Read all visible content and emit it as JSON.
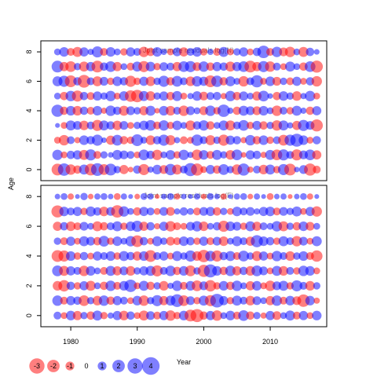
{
  "chart_data": {
    "type": "scatter",
    "kind": "bubble residual plot",
    "xlabel": "Year",
    "ylabel": "Age",
    "shared_x_ticks": [
      1980,
      1990,
      2000,
      2010
    ],
    "xlim": [
      1975.5,
      2018.5
    ],
    "colors": {
      "positive": "#0000ff",
      "negative": "#ff0000",
      "opacity": 0.5
    },
    "years": [
      1978,
      1979,
      1980,
      1981,
      1982,
      1983,
      1984,
      1985,
      1986,
      1987,
      1988,
      1989,
      1990,
      1991,
      1992,
      1993,
      1994,
      1995,
      1996,
      1997,
      1998,
      1999,
      2000,
      2001,
      2002,
      2003,
      2004,
      2005,
      2006,
      2007,
      2008,
      2009,
      2010,
      2011,
      2012,
      2013,
      2014,
      2015,
      2016,
      2017
    ],
    "ages": [
      0,
      1,
      2,
      3,
      4,
      5,
      6,
      7,
      8
    ],
    "legend": [
      {
        "label": "-3",
        "value": -3
      },
      {
        "label": "-2",
        "value": -2
      },
      {
        "label": "-1",
        "value": -1
      },
      {
        "label": "0",
        "value": 0
      },
      {
        "label": "1",
        "value": 1
      },
      {
        "label": "2",
        "value": 2
      },
      {
        "label": "3",
        "value": 3
      },
      {
        "label": "4",
        "value": 4
      }
    ],
    "panels": [
      {
        "title": "Joint sample residuals log(N)",
        "y_ticks": [
          0,
          2,
          4,
          6,
          8
        ],
        "ylim": [
          -0.75,
          8.75
        ],
        "residuals": [
          [
            -1.8,
            2.0,
            -1.4,
            -0.9,
            1.3,
            -1.8,
            2.1,
            -1.5,
            1.8,
            0.7,
            -1.1,
            -0.4,
            0.9,
            -1.6,
            0.5,
            1.2,
            -1.0,
            1.7,
            -1.3,
            0.8,
            2.2,
            -1.9,
            -0.6,
            1.1,
            -0.9,
            1.5,
            0.7,
            -1.4,
            1.9,
            -0.5,
            0.8,
            -1.2,
            1.3,
            -0.7,
            1.6,
            -1.8,
            0.4,
            1.0,
            -1.9,
            -0.8
          ],
          [
            1.4,
            -0.6,
            0.9,
            1.1,
            -1.3,
            1.6,
            -0.8,
            0.7,
            0.4,
            1.3,
            1.0,
            0.8,
            -0.6,
            1.5,
            0.9,
            -1.4,
            0.6,
            1.2,
            -0.7,
            1.4,
            0.5,
            -1.5,
            1.2,
            -0.8,
            1.3,
            0.7,
            -1.2,
            1.5,
            -0.4,
            1.1,
            0.9,
            -0.5,
            1.3,
            -1.5,
            1.6,
            0.8,
            -1.6,
            1.0,
            1.5,
            -1.1
          ],
          [
            -0.6,
            -1.4,
            0.8,
            -0.5,
            1.2,
            0.9,
            1.6,
            0.4,
            -1.1,
            1.5,
            -0.9,
            -0.7,
            1.8,
            0.6,
            -1.2,
            0.9,
            1.6,
            -1.3,
            0.5,
            -0.8,
            -0.6,
            1.7,
            0.8,
            -1.3,
            0.7,
            -1.6,
            1.1,
            0.9,
            -0.5,
            1.4,
            -0.9,
            1.2,
            -0.7,
            0.8,
            -1.5,
            1.6,
            2.2,
            1.2,
            -0.6,
            0.9
          ],
          [
            0.3,
            -0.6,
            1.3,
            1.0,
            -1.2,
            0.8,
            -1.6,
            1.3,
            0.9,
            -1.2,
            1.0,
            -0.6,
            0.7,
            1.2,
            1.5,
            -0.8,
            1.4,
            -0.7,
            1.2,
            0.6,
            -1.3,
            0.9,
            1.4,
            -0.9,
            0.6,
            1.3,
            -1.3,
            0.8,
            1.5,
            -0.7,
            1.1,
            -0.9,
            0.7,
            -1.4,
            1.3,
            0.5,
            -1.1,
            1.6,
            1.0,
            -1.9
          ],
          [
            1.9,
            -0.9,
            1.2,
            -1.2,
            0.9,
            -0.8,
            1.2,
            -0.5,
            1.4,
            0.9,
            -1.3,
            1.0,
            0.7,
            -1.1,
            1.3,
            -0.4,
            1.2,
            -1.2,
            0.8,
            -1.4,
            1.0,
            0.6,
            -1.0,
            1.4,
            -0.7,
            2.0,
            0.5,
            -0.9,
            1.3,
            1.0,
            -1.0,
            1.2,
            0.6,
            -1.4,
            0.8,
            -0.7,
            1.3,
            0.5,
            -0.9,
            1.1
          ],
          [
            0.6,
            -0.9,
            1.4,
            -1.6,
            0.9,
            -0.8,
            1.1,
            0.7,
            1.4,
            -0.6,
            1.2,
            -1.7,
            -2.0,
            1.3,
            -1.2,
            0.7,
            1.1,
            -0.9,
            1.3,
            -0.6,
            0.5,
            1.2,
            -1.0,
            0.8,
            0.9,
            -0.5,
            1.4,
            -0.9,
            1.1,
            0.6,
            -1.1,
            1.5,
            0.4,
            -0.9,
            1.2,
            0.7,
            -1.2,
            0.5,
            1.4,
            -0.6
          ],
          [
            1.3,
            1.6,
            -1.8,
            0.9,
            -2.1,
            0.8,
            -1.3,
            1.0,
            -0.7,
            1.2,
            0.9,
            -1.6,
            -0.7,
            1.1,
            -1.2,
            0.7,
            1.6,
            -0.9,
            1.5,
            0.8,
            -1.2,
            1.4,
            1.1,
            -1.8,
            1.7,
            -0.9,
            1.3,
            0.6,
            -1.4,
            0.8,
            1.9,
            -0.6,
            1.2,
            -1.0,
            0.7,
            -0.8,
            1.1,
            -0.6,
            0.9,
            -1.4
          ],
          [
            1.8,
            -1.1,
            -1.5,
            0.7,
            -1.3,
            1.1,
            -1.8,
            0.9,
            1.5,
            -1.1,
            0.6,
            -0.8,
            1.3,
            -1.6,
            1.2,
            -0.7,
            1.0,
            0.8,
            -1.1,
            1.5,
            1.6,
            -1.0,
            1.4,
            -0.9,
            1.1,
            0.9,
            -1.3,
            1.1,
            1.5,
            -1.8,
            -1.1,
            1.6,
            -1.4,
            0.8,
            -0.6,
            1.3,
            0.6,
            -0.9,
            1.5,
            -1.9
          ],
          [
            0.6,
            1.2,
            -0.8,
            -1.3,
            1.1,
            0.5,
            1.6,
            -0.8,
            1.2,
            0.6,
            -0.7,
            1.1,
            0.8,
            -1.4,
            -0.9,
            1.2,
            0.5,
            -0.6,
            1.0,
            -1.1,
            0.8,
            1.2,
            -0.7,
            0.5,
            -0.8,
            1.3,
            -0.6,
            0.7,
            1.1,
            -0.6,
            0.9,
            2.0,
            -0.8,
            1.4,
            -1.0,
            -1.4,
            0.6,
            -1.3,
            0.9,
            0.4
          ]
        ]
      },
      {
        "title": "Joint sample residuals log(F)",
        "y_ticks": [
          0,
          2,
          4,
          6,
          8
        ],
        "ylim": [
          -0.75,
          8.75
        ],
        "residuals": [
          [
            0.8,
            -0.6,
            1.2,
            -1.1,
            0.7,
            -0.9,
            1.3,
            -0.7,
            0.5,
            1.1,
            -1.2,
            0.9,
            -0.6,
            -1.3,
            1.0,
            -0.8,
            1.1,
            -1.4,
            -0.7,
            1.2,
            -1.8,
            -2.2,
            -0.9,
            1.1,
            -1.4,
            0.6,
            1.2,
            -0.8,
            1.5,
            -0.9,
            0.7,
            -0.5,
            1.1,
            -1.0,
            0.6,
            1.3,
            -0.8,
            1.1,
            -0.6,
            1.2
          ],
          [
            1.4,
            -0.8,
            1.1,
            0.9,
            -1.5,
            0.7,
            -1.2,
            1.4,
            -0.9,
            1.1,
            0.8,
            -0.6,
            1.2,
            -1.4,
            0.7,
            1.6,
            -1.1,
            1.3,
            2.1,
            -1.5,
            1.0,
            -0.7,
            1.3,
            -1.6,
            2.4,
            1.1,
            -0.7,
            1.3,
            0.8,
            -1.2,
            1.0,
            0.6,
            -1.1,
            1.4,
            -0.8,
            1.2,
            -1.0,
            -2.0,
            1.2,
            -0.5
          ],
          [
            -1.2,
            -1.7,
            0.9,
            -0.7,
            1.1,
            -1.3,
            0.6,
            -0.9,
            1.4,
            -0.8,
            1.2,
            2.0,
            -0.6,
            1.3,
            -0.9,
            0.7,
            -1.2,
            0.5,
            1.4,
            -0.8,
            1.2,
            -1.5,
            1.0,
            -1.7,
            -0.7,
            1.2,
            -0.9,
            1.4,
            0.6,
            -1.1,
            1.2,
            -0.6,
            -1.4,
            1.0,
            1.3,
            -0.7,
            1.6,
            0.8,
            -1.2,
            0.7
          ],
          [
            1.5,
            -1.3,
            1.1,
            0.8,
            -1.4,
            1.2,
            0.6,
            -0.8,
            1.3,
            -1.1,
            1.0,
            -1.2,
            0.7,
            1.1,
            1.3,
            -1.6,
            0.8,
            1.4,
            -0.9,
            1.2,
            -1.5,
            0.7,
            -1.9,
            2.2,
            1.2,
            -0.9,
            1.4,
            -1.1,
            0.9,
            -1.2,
            1.5,
            1.0,
            -0.6,
            1.3,
            -1.2,
            0.8,
            -0.7,
            1.4,
            1.2,
            -0.6
          ],
          [
            -1.8,
            -1.6,
            1.2,
            -0.7,
            0.9,
            -0.6,
            1.1,
            0.8,
            1.2,
            -0.7,
            1.3,
            0.9,
            -1.1,
            1.2,
            -1.8,
            0.8,
            1.1,
            -0.6,
            1.3,
            0.7,
            1.6,
            -1.2,
            -2.0,
            1.4,
            -1.6,
            0.9,
            1.3,
            -0.8,
            1.5,
            0.7,
            -1.3,
            1.1,
            -0.6,
            1.4,
            0.8,
            -1.2,
            0.7,
            1.2,
            -0.8,
            -1.7
          ],
          [
            0.7,
            -0.8,
            1.1,
            -0.6,
            1.3,
            1.0,
            -0.9,
            1.5,
            -0.7,
            1.2,
            0.6,
            1.4,
            -1.8,
            0.9,
            -0.6,
            1.3,
            0.7,
            -1.0,
            -0.8,
            1.2,
            0.9,
            -0.7,
            1.1,
            -0.8,
            1.0,
            -1.2,
            0.6,
            1.3,
            0.8,
            -1.1,
            1.9,
            1.2,
            0.9,
            -0.7,
            1.3,
            0.8,
            -1.4,
            1.0,
            -0.6,
            1.3
          ],
          [
            -1.1,
            0.9,
            -1.2,
            -0.8,
            1.0,
            0.6,
            -1.3,
            -0.9,
            0.8,
            1.3,
            -0.7,
            1.2,
            1.6,
            -1.1,
            0.9,
            -0.5,
            1.1,
            -1.4,
            -0.8,
            -0.6,
            1.0,
            1.4,
            -1.2,
            0.6,
            0.9,
            -1.6,
            1.2,
            1.0,
            -0.7,
            1.3,
            -1.1,
            0.8,
            0.6,
            1.4,
            -1.3,
            0.7,
            -0.9,
            1.2,
            -1.0,
            0.6
          ],
          [
            -1.9,
            1.2,
            0.8,
            1.1,
            -0.7,
            1.3,
            0.9,
            -1.2,
            1.0,
            -2.0,
            1.4,
            0.6,
            -0.9,
            1.1,
            0.8,
            -0.6,
            1.0,
            -1.0,
            0.5,
            0.9,
            0.6,
            -0.8,
            1.0,
            1.1,
            -0.9,
            0.7,
            -0.6,
            1.2,
            0.8,
            1.0,
            0.5,
            1.1,
            1.2,
            -0.8,
            1.0,
            0.7,
            1.3,
            -0.6,
            1.1,
            -1.4
          ],
          [
            0.4,
            0.6,
            -0.5,
            0.3,
            0.7,
            -0.4,
            0.5,
            0.6,
            0.4,
            -0.6,
            0.5,
            0.3,
            -0.4,
            0.6,
            0.5,
            -0.3,
            0.4,
            0.6,
            -0.5,
            0.4,
            0.3,
            0.5,
            -0.4,
            0.6,
            0.4,
            -0.5,
            0.3,
            0.5,
            0.6,
            -0.4,
            0.5,
            0.3,
            -0.6,
            0.4,
            0.5,
            -0.3,
            0.4,
            0.6,
            -0.5,
            0.3
          ]
        ]
      }
    ]
  }
}
